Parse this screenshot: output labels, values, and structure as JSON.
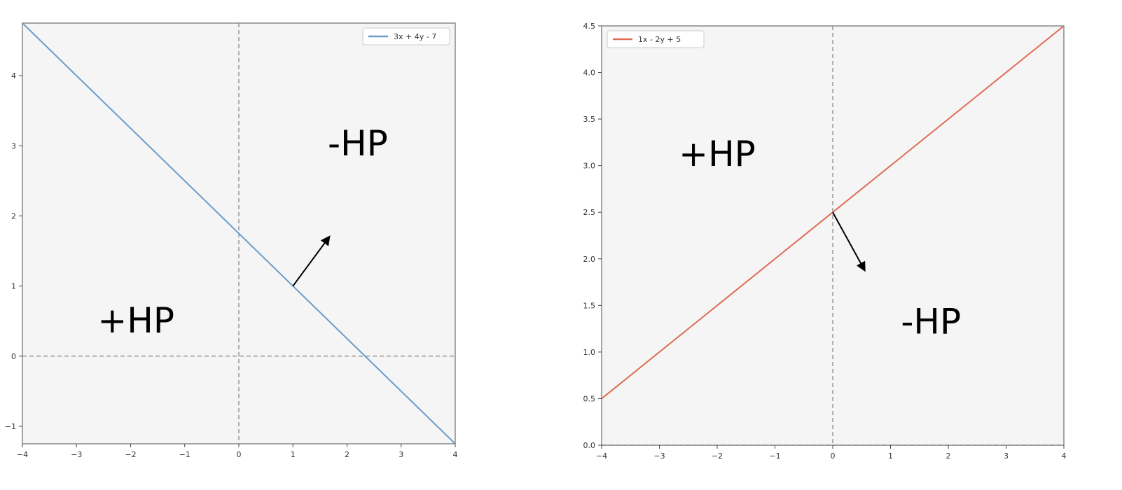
{
  "chart_data": [
    {
      "type": "line",
      "title": "",
      "xlabel": "",
      "ylabel": "",
      "xlim": [
        -4,
        4
      ],
      "ylim": [
        -1.25,
        4.75
      ],
      "xticks": [
        -4,
        -3,
        -2,
        -1,
        0,
        1,
        2,
        3,
        4
      ],
      "xtick_labels": [
        "−4",
        "−3",
        "−2",
        "−1",
        "0",
        "1",
        "2",
        "3",
        "4"
      ],
      "yticks": [
        -1,
        0,
        1,
        2,
        3,
        4
      ],
      "ytick_labels": [
        "−1",
        "0",
        "1",
        "2",
        "3",
        "4"
      ],
      "grid": false,
      "legend_position": "top-right",
      "series": [
        {
          "name": "3x + 4y - 7",
          "color": "#6a9ccc",
          "x": [
            -4,
            4
          ],
          "y": [
            4.75,
            -1.25
          ]
        }
      ],
      "reference_lines": {
        "x": 0,
        "y": 0,
        "style": "dashed",
        "color": "#999999"
      },
      "normal_arrow": {
        "from": [
          1,
          1
        ],
        "to": [
          1.67,
          1.7
        ],
        "color": "#000000"
      },
      "region_labels": [
        {
          "text": "-HP",
          "x": 2.2,
          "y": 3.0
        },
        {
          "text": "+HP",
          "x": -1.9,
          "y": 0.47
        }
      ]
    },
    {
      "type": "line",
      "title": "",
      "xlabel": "",
      "ylabel": "",
      "xlim": [
        -4,
        4
      ],
      "ylim": [
        0,
        4.5
      ],
      "xticks": [
        -4,
        -3,
        -2,
        -1,
        0,
        1,
        2,
        3,
        4
      ],
      "xtick_labels": [
        "−4",
        "−3",
        "−2",
        "−1",
        "0",
        "1",
        "2",
        "3",
        "4"
      ],
      "yticks": [
        0,
        0.5,
        1,
        1.5,
        2,
        2.5,
        3,
        3.5,
        4,
        4.5
      ],
      "ytick_labels": [
        "0.0",
        "0.5",
        "1.0",
        "1.5",
        "2.0",
        "2.5",
        "3.0",
        "3.5",
        "4.0",
        "4.5"
      ],
      "grid": false,
      "legend_position": "top-left",
      "series": [
        {
          "name": "1x - 2y + 5",
          "color": "#e06b55",
          "x": [
            -4,
            4
          ],
          "y": [
            0.5,
            4.5
          ]
        }
      ],
      "reference_lines": {
        "x": 0,
        "y": 0,
        "style": "dashed",
        "color": "#999999"
      },
      "normal_arrow": {
        "from": [
          0,
          2.5
        ],
        "to": [
          0.55,
          1.88
        ],
        "color": "#000000"
      },
      "region_labels": [
        {
          "text": "+HP",
          "x": -2.0,
          "y": 3.1
        },
        {
          "text": "-HP",
          "x": 1.7,
          "y": 1.3
        }
      ]
    }
  ]
}
